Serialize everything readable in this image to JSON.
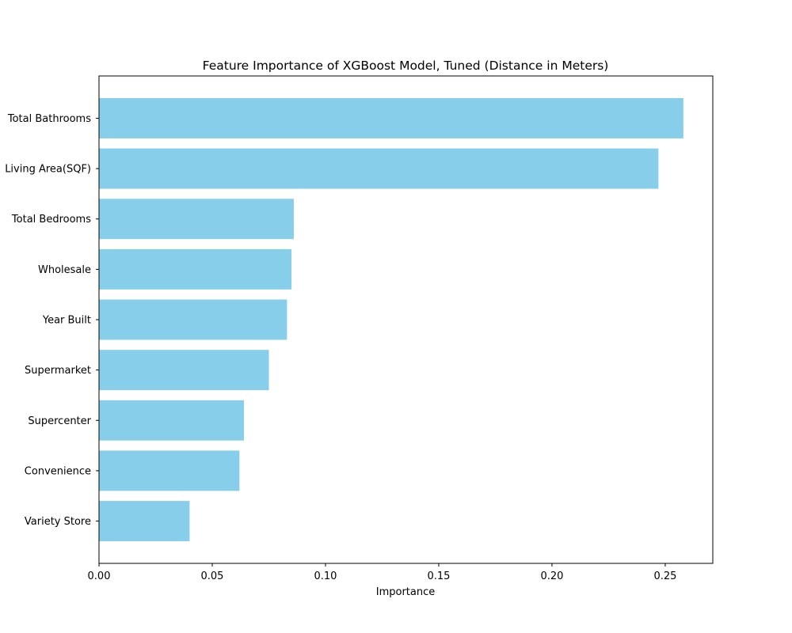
{
  "chart_data": {
    "type": "bar",
    "orientation": "horizontal",
    "title": "Feature Importance of XGBoost Model, Tuned (Distance in Meters)",
    "xlabel": "Importance",
    "ylabel": "",
    "categories": [
      "Total Bathrooms",
      "Living Area(SQF)",
      "Total Bedrooms",
      "Wholesale",
      "Year Built",
      "Supermarket",
      "Supercenter",
      "Convenience",
      "Variety Store"
    ],
    "values": [
      0.258,
      0.247,
      0.086,
      0.085,
      0.083,
      0.075,
      0.064,
      0.062,
      0.04
    ],
    "xlim": [
      0.0,
      0.271
    ],
    "xticks": [
      0.0,
      0.05,
      0.1,
      0.15,
      0.2,
      0.25
    ],
    "xtick_labels": [
      "0.00",
      "0.05",
      "0.10",
      "0.15",
      "0.20",
      "0.25"
    ],
    "bar_color": "#87ceeb",
    "grid": false,
    "legend": "none"
  }
}
